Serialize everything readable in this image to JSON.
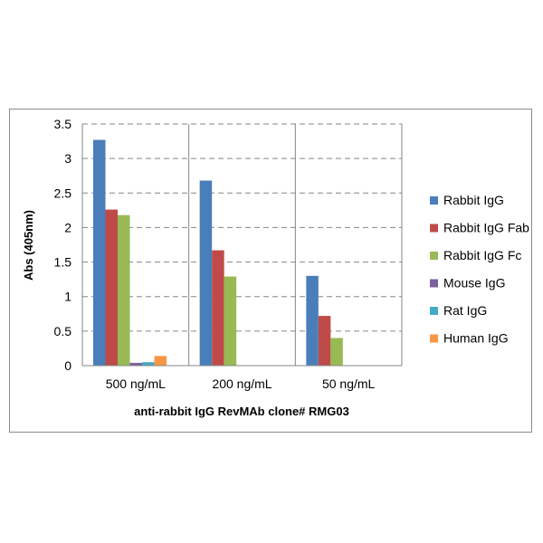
{
  "chart_data": {
    "type": "bar",
    "xlabel": "anti-rabbit  IgG RevMAb clone# RMG03",
    "ylabel": "Abs (405nm)",
    "ylim": [
      0,
      3.5
    ],
    "yticks": [
      "0",
      "0.5",
      "1",
      "1.5",
      "2",
      "2.5",
      "3",
      "3.5"
    ],
    "categories": [
      "500 ng/mL",
      "200 ng/mL",
      "50 ng/mL"
    ],
    "series": [
      {
        "name": "Rabbit IgG",
        "color": "#4A7EBB",
        "values": [
          3.27,
          2.68,
          1.3
        ]
      },
      {
        "name": "Rabbit IgG Fab",
        "color": "#BE4B48",
        "values": [
          2.26,
          1.67,
          0.72
        ]
      },
      {
        "name": "Rabbit IgG Fc",
        "color": "#98B954",
        "values": [
          2.18,
          1.29,
          0.4
        ]
      },
      {
        "name": "Mouse IgG",
        "color": "#7D60A0",
        "values": [
          0.04,
          0.0,
          0.0
        ]
      },
      {
        "name": "Rat IgG",
        "color": "#46AAC5",
        "values": [
          0.05,
          0.0,
          0.0
        ]
      },
      {
        "name": "Human IgG",
        "color": "#F79646",
        "values": [
          0.14,
          0.0,
          0.0
        ]
      }
    ],
    "grid": true,
    "legend_position": "right"
  }
}
